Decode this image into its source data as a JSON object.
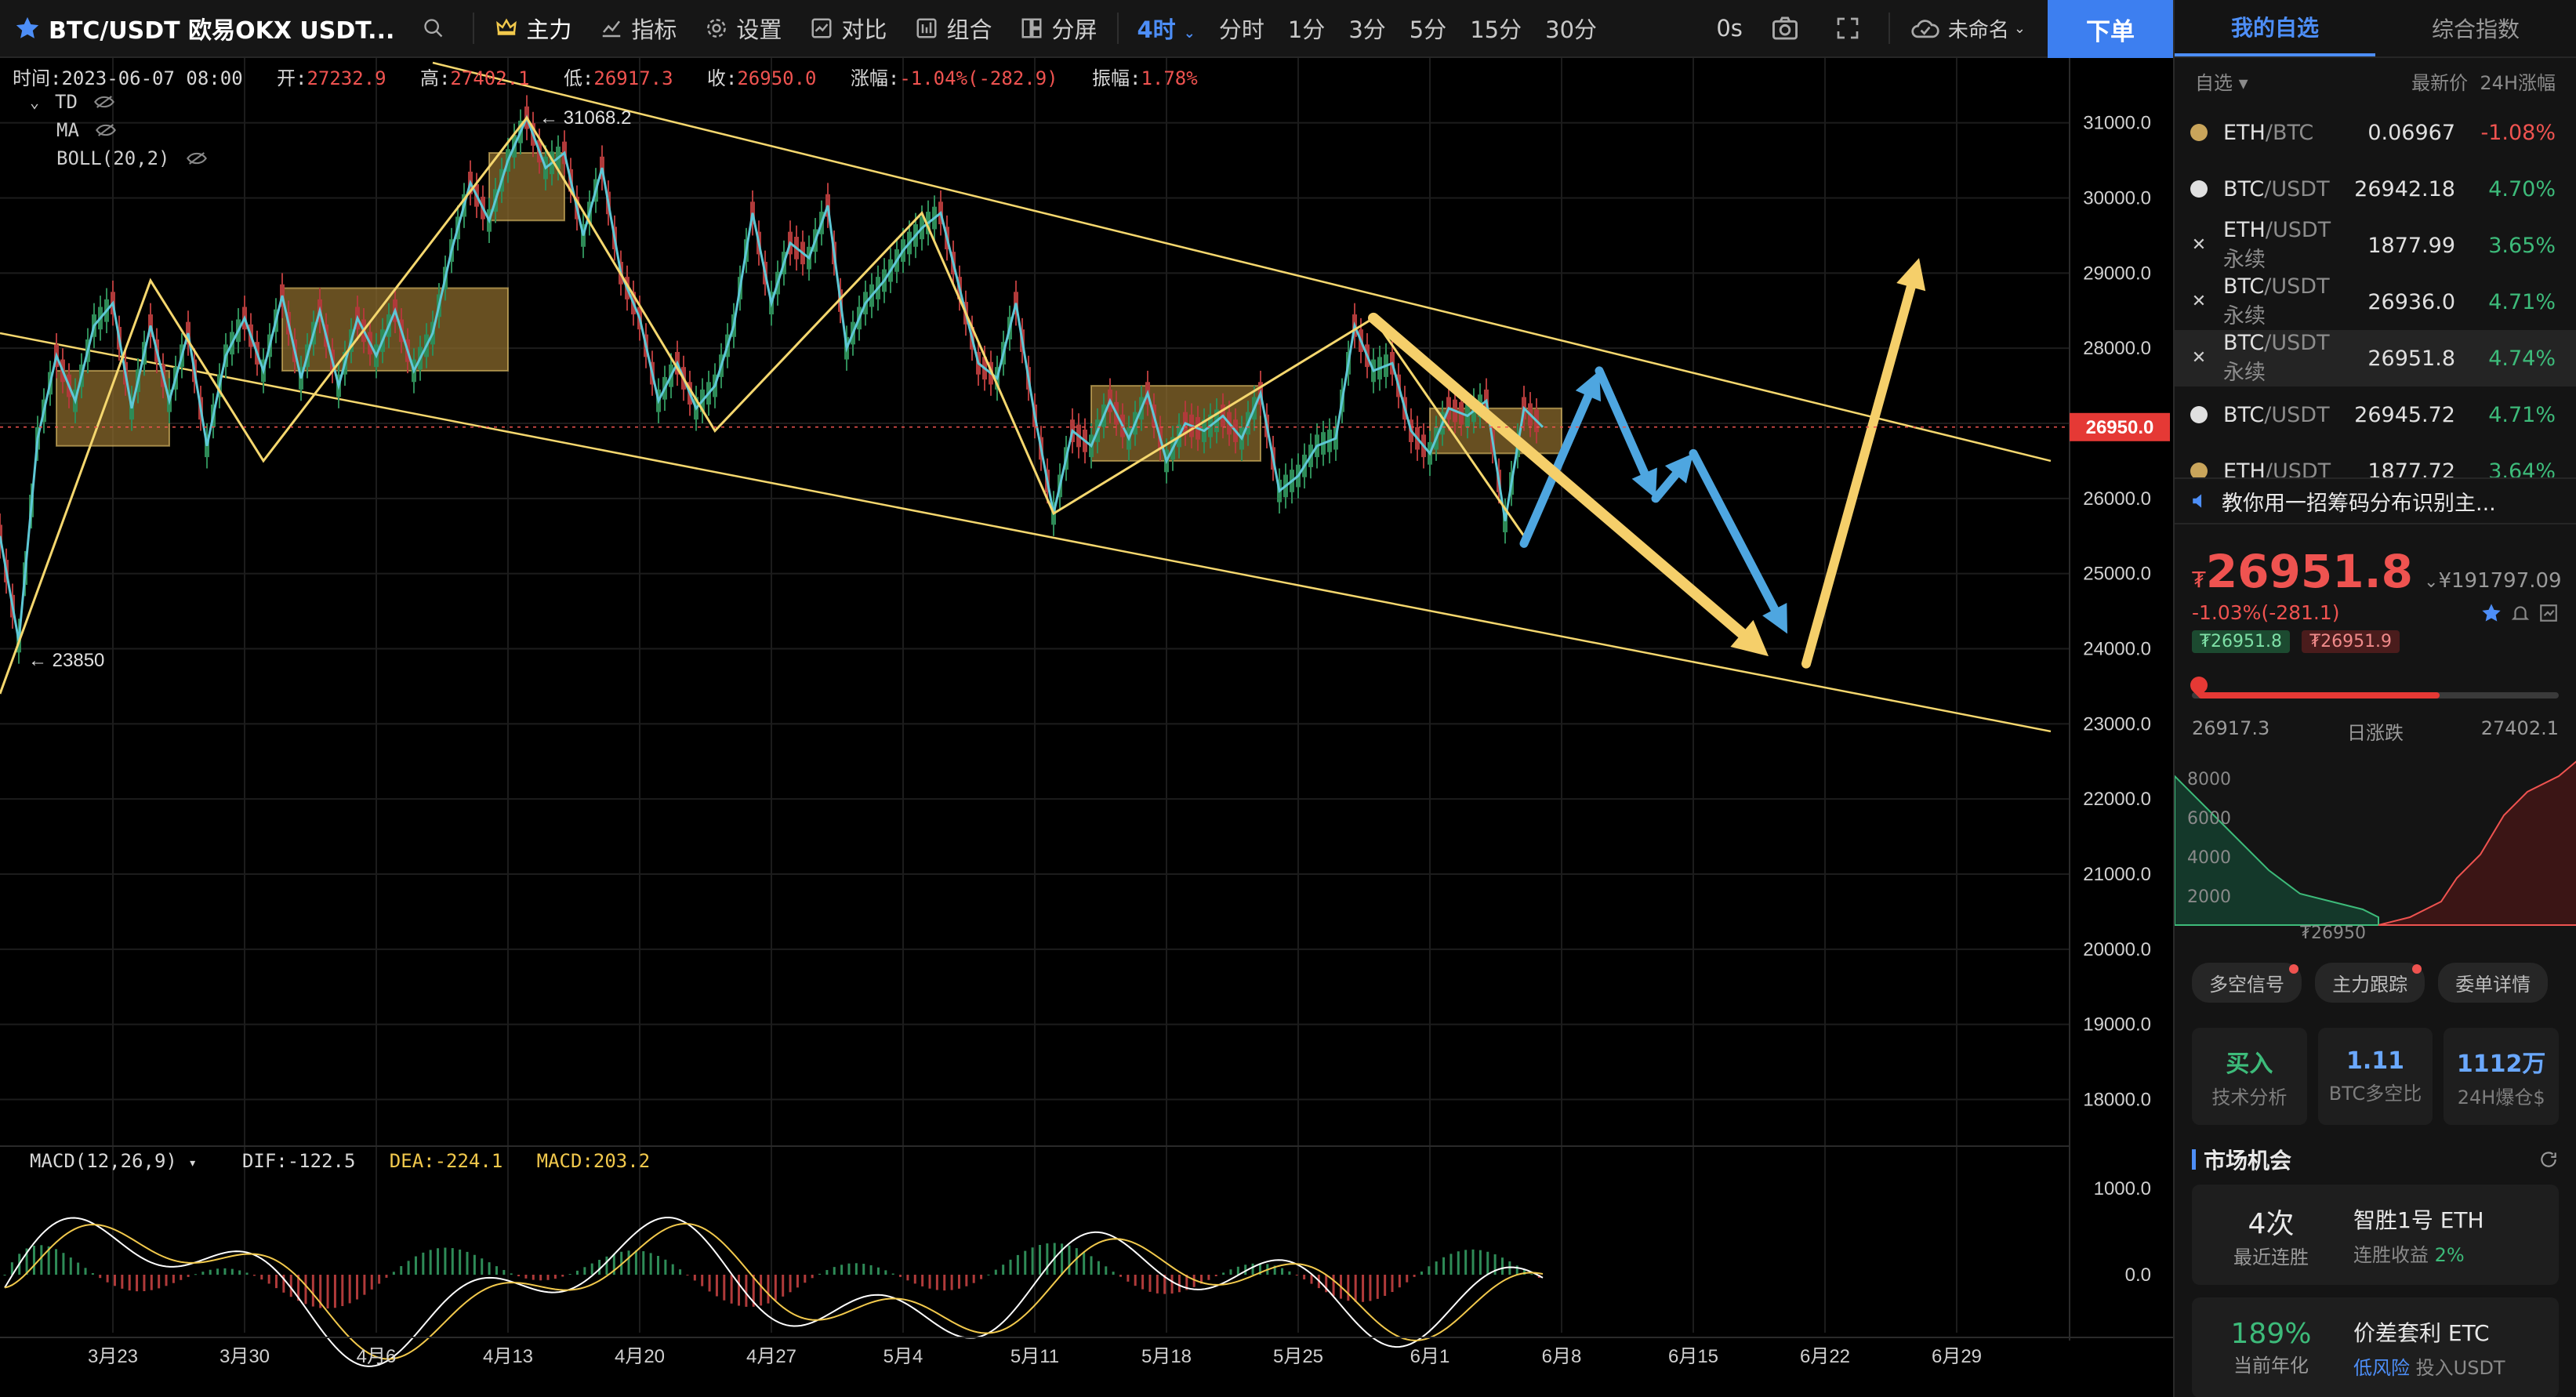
{
  "toolbar": {
    "symbol": "BTC/USDT 欧易OKX USDT...",
    "main": "主力",
    "indicator": "指标",
    "settings": "设置",
    "compare": "对比",
    "combo": "组合",
    "split": "分屏",
    "timeframes": [
      "4时",
      "分时",
      "1分",
      "3分",
      "5分",
      "15分",
      "30分"
    ],
    "active_timeframe": "4时",
    "countdown": "0s",
    "cloud": "未命名",
    "order_button": "下单"
  },
  "info": {
    "time_label": "时间:",
    "time": "2023-06-07 08:00",
    "open_label": "开:",
    "open": "27232.9",
    "high_label": "高:",
    "high": "27402.1",
    "low_label": "低:",
    "low": "26917.3",
    "close_label": "收:",
    "close": "26950.0",
    "change_label": "涨幅:",
    "change": "-1.04%(-282.9)",
    "amp_label": "振幅:",
    "amp": "1.78%"
  },
  "indicators": [
    "TD",
    "MA",
    "BOLL(20,2)"
  ],
  "macd": {
    "name": "MACD(12,26,9)",
    "dif_label": "DIF:",
    "dif": "-122.5",
    "dea_label": "DEA:",
    "dea": "-224.1",
    "macd_label": "MACD:",
    "macd": "203.2"
  },
  "chart_data": {
    "type": "line",
    "symbol": "BTC/USDT",
    "interval": "4h",
    "y_axis_ticks": [
      "31000.0",
      "30000.0",
      "29000.0",
      "28000.0",
      "27000.0",
      "26000.0",
      "25000.0",
      "24000.0",
      "23000.0",
      "22000.0",
      "21000.0",
      "20000.0",
      "19000.0",
      "18000.0"
    ],
    "y_range": [
      17400,
      31800
    ],
    "x_axis_ticks": [
      "3月23",
      "3月30",
      "4月6",
      "4月13",
      "4月20",
      "4月27",
      "5月4",
      "5月11",
      "5月18",
      "5月25",
      "6月1",
      "6月8",
      "6月15",
      "6月22",
      "6月29"
    ],
    "x_range": [
      "2023-03-17",
      "2023-07-05"
    ],
    "current_price_label": "26950.0",
    "current_price": 26950,
    "high_marker": "31068.2",
    "high_marker_value": 31068.2,
    "low_marker": "23850",
    "low_marker_value": 23850,
    "macd_ticks": [
      "1000.0",
      "0.0"
    ],
    "price_path_zigzag": [
      {
        "x": "2023-03-17",
        "y": 25500
      },
      {
        "x": "2023-03-18",
        "y": 24100
      },
      {
        "x": "2023-03-19",
        "y": 26800
      },
      {
        "x": "2023-03-20",
        "y": 27900
      },
      {
        "x": "2023-03-21",
        "y": 27300
      },
      {
        "x": "2023-03-22",
        "y": 28300
      },
      {
        "x": "2023-03-23",
        "y": 28600
      },
      {
        "x": "2023-03-24",
        "y": 27200
      },
      {
        "x": "2023-03-25",
        "y": 28300
      },
      {
        "x": "2023-03-26",
        "y": 27300
      },
      {
        "x": "2023-03-27",
        "y": 28200
      },
      {
        "x": "2023-03-28",
        "y": 26700
      },
      {
        "x": "2023-03-29",
        "y": 27900
      },
      {
        "x": "2023-03-30",
        "y": 28400
      },
      {
        "x": "2023-03-31",
        "y": 27700
      },
      {
        "x": "2023-04-01",
        "y": 28700
      },
      {
        "x": "2023-04-02",
        "y": 27600
      },
      {
        "x": "2023-04-03",
        "y": 28500
      },
      {
        "x": "2023-04-04",
        "y": 27500
      },
      {
        "x": "2023-04-05",
        "y": 28400
      },
      {
        "x": "2023-04-06",
        "y": 27900
      },
      {
        "x": "2023-04-07",
        "y": 28500
      },
      {
        "x": "2023-04-08",
        "y": 27700
      },
      {
        "x": "2023-04-09",
        "y": 28200
      },
      {
        "x": "2023-04-10",
        "y": 29300
      },
      {
        "x": "2023-04-11",
        "y": 30200
      },
      {
        "x": "2023-04-12",
        "y": 29700
      },
      {
        "x": "2023-04-13",
        "y": 30500
      },
      {
        "x": "2023-04-14",
        "y": 31068
      },
      {
        "x": "2023-04-15",
        "y": 30400
      },
      {
        "x": "2023-04-16",
        "y": 30600
      },
      {
        "x": "2023-04-17",
        "y": 29500
      },
      {
        "x": "2023-04-18",
        "y": 30400
      },
      {
        "x": "2023-04-19",
        "y": 29000
      },
      {
        "x": "2023-04-20",
        "y": 28400
      },
      {
        "x": "2023-04-21",
        "y": 27300
      },
      {
        "x": "2023-04-22",
        "y": 27800
      },
      {
        "x": "2023-04-23",
        "y": 27200
      },
      {
        "x": "2023-04-24",
        "y": 27500
      },
      {
        "x": "2023-04-25",
        "y": 28300
      },
      {
        "x": "2023-04-26",
        "y": 29800
      },
      {
        "x": "2023-04-27",
        "y": 28600
      },
      {
        "x": "2023-04-28",
        "y": 29400
      },
      {
        "x": "2023-04-29",
        "y": 29200
      },
      {
        "x": "2023-04-30",
        "y": 29900
      },
      {
        "x": "2023-05-01",
        "y": 28000
      },
      {
        "x": "2023-05-02",
        "y": 28600
      },
      {
        "x": "2023-05-03",
        "y": 28900
      },
      {
        "x": "2023-05-04",
        "y": 29300
      },
      {
        "x": "2023-05-05",
        "y": 29600
      },
      {
        "x": "2023-05-06",
        "y": 29800
      },
      {
        "x": "2023-05-07",
        "y": 28800
      },
      {
        "x": "2023-05-08",
        "y": 27800
      },
      {
        "x": "2023-05-09",
        "y": 27600
      },
      {
        "x": "2023-05-10",
        "y": 28600
      },
      {
        "x": "2023-05-11",
        "y": 27100
      },
      {
        "x": "2023-05-12",
        "y": 25800
      },
      {
        "x": "2023-05-13",
        "y": 26900
      },
      {
        "x": "2023-05-14",
        "y": 26700
      },
      {
        "x": "2023-05-15",
        "y": 27300
      },
      {
        "x": "2023-05-16",
        "y": 26800
      },
      {
        "x": "2023-05-17",
        "y": 27400
      },
      {
        "x": "2023-05-18",
        "y": 26500
      },
      {
        "x": "2023-05-19",
        "y": 27000
      },
      {
        "x": "2023-05-20",
        "y": 26900
      },
      {
        "x": "2023-05-21",
        "y": 27100
      },
      {
        "x": "2023-05-22",
        "y": 26800
      },
      {
        "x": "2023-05-23",
        "y": 27400
      },
      {
        "x": "2023-05-24",
        "y": 26100
      },
      {
        "x": "2023-05-25",
        "y": 26300
      },
      {
        "x": "2023-05-26",
        "y": 26700
      },
      {
        "x": "2023-05-27",
        "y": 26800
      },
      {
        "x": "2023-05-28",
        "y": 28300
      },
      {
        "x": "2023-05-29",
        "y": 27700
      },
      {
        "x": "2023-05-30",
        "y": 27800
      },
      {
        "x": "2023-05-31",
        "y": 26900
      },
      {
        "x": "2023-06-01",
        "y": 26600
      },
      {
        "x": "2023-06-02",
        "y": 27200
      },
      {
        "x": "2023-06-03",
        "y": 27100
      },
      {
        "x": "2023-06-04",
        "y": 27300
      },
      {
        "x": "2023-06-05",
        "y": 25700
      },
      {
        "x": "2023-06-06",
        "y": 27200
      },
      {
        "x": "2023-06-07",
        "y": 26950
      }
    ],
    "trend_channel": {
      "upper": [
        {
          "x": "2023-04-09",
          "y": 31800
        },
        {
          "x": "2023-07-04",
          "y": 26500
        }
      ],
      "lower": [
        {
          "x": "2023-03-17",
          "y": 28200
        },
        {
          "x": "2023-07-04",
          "y": 22900
        }
      ]
    },
    "yellow_wave": [
      {
        "x": "2023-03-17",
        "y": 23400
      },
      {
        "x": "2023-03-25",
        "y": 28900
      },
      {
        "x": "2023-03-31",
        "y": 26500
      },
      {
        "x": "2023-04-14",
        "y": 31068
      },
      {
        "x": "2023-04-24",
        "y": 26900
      },
      {
        "x": "2023-05-05",
        "y": 29800
      },
      {
        "x": "2023-05-12",
        "y": 25800
      },
      {
        "x": "2023-05-29",
        "y": 28400
      },
      {
        "x": "2023-06-06",
        "y": 25500
      }
    ],
    "projection_yellow_down": [
      {
        "x": "2023-05-29",
        "y": 28400
      },
      {
        "x": "2023-06-19",
        "y": 23900
      }
    ],
    "projection_yellow_up": [
      {
        "x": "2023-06-21",
        "y": 23800
      },
      {
        "x": "2023-06-27",
        "y": 29200
      }
    ],
    "projection_blue": [
      {
        "x": "2023-06-06",
        "y": 25400
      },
      {
        "x": "2023-06-10",
        "y": 27700
      },
      {
        "x": "2023-06-13",
        "y": 26000
      },
      {
        "x": "2023-06-15",
        "y": 26600
      },
      {
        "x": "2023-06-20",
        "y": 24200
      }
    ],
    "consolidation_boxes": [
      {
        "x0": "2023-03-20",
        "x1": "2023-03-26",
        "y0": 26700,
        "y1": 27700
      },
      {
        "x0": "2023-04-01",
        "x1": "2023-04-13",
        "y0": 27700,
        "y1": 28800
      },
      {
        "x0": "2023-04-12",
        "x1": "2023-04-16",
        "y0": 29700,
        "y1": 30600
      },
      {
        "x0": "2023-05-14",
        "x1": "2023-05-23",
        "y0": 26500,
        "y1": 27500
      },
      {
        "x0": "2023-06-01",
        "x1": "2023-06-08",
        "y0": 26600,
        "y1": 27200
      }
    ]
  },
  "panel": {
    "tabs": [
      "我的自选",
      "综合指数"
    ],
    "filter": "自选",
    "col_price": "最新价",
    "col_change": "24H涨幅",
    "watchlist": [
      {
        "base": "ETH",
        "quote": "/BTC",
        "price": "0.06967",
        "change": "-1.08%",
        "dir": "down"
      },
      {
        "base": "BTC",
        "quote": "/USDT",
        "price": "26942.18",
        "change": "4.70%",
        "dir": "up"
      },
      {
        "base": "ETH",
        "quote": "/USDT永续",
        "price": "1877.99",
        "change": "3.65%",
        "dir": "up"
      },
      {
        "base": "BTC",
        "quote": "/USDT永续",
        "price": "26936.0",
        "change": "4.71%",
        "dir": "up"
      },
      {
        "base": "BTC",
        "quote": "/USDT永续",
        "price": "26951.8",
        "change": "4.74%",
        "dir": "up"
      },
      {
        "base": "BTC",
        "quote": "/USDT",
        "price": "26945.72",
        "change": "4.71%",
        "dir": "up"
      },
      {
        "base": "ETH",
        "quote": "/USDT",
        "price": "1877.72",
        "change": "3.64%",
        "dir": "up"
      }
    ],
    "news": "教你用一招筹码分布识别主...",
    "price": "26951.8",
    "currency": "₮",
    "cny_price": "¥191797.09",
    "change": "-1.03%(-281.1)",
    "tag_bid": "₮26951.8",
    "tag_ask": "₮26951.9",
    "range_low": "26917.3",
    "range_label": "日涨跌",
    "range_high": "27402.1",
    "depth_ticks": [
      "8000",
      "6000",
      "4000",
      "2000"
    ],
    "depth_price": "₮26950",
    "pills": [
      "多空信号",
      "主力跟踪",
      "委单详情"
    ],
    "cards": [
      {
        "value": "买入",
        "label": "技术分析"
      },
      {
        "value": "1.11",
        "label": "BTC多空比"
      },
      {
        "value": "1112万",
        "label": "24H爆仓$"
      }
    ],
    "market_title": "市场机会",
    "opps": [
      {
        "num": "4次",
        "sub": "最近连胜",
        "name": "智胜1号 ETH",
        "desc": "连胜收益",
        "pct": "2%"
      },
      {
        "num": "189%",
        "sub": "当前年化",
        "name": "价差套利 ETC",
        "desc": "低风险",
        "desc2": "投入USDT"
      }
    ]
  },
  "colors": {
    "up": "#3dbb7a",
    "down": "#ef5350",
    "accent": "#3d7ff0",
    "zigzag": "#5ec8d6",
    "wave": "#f5d76e",
    "projection_blue": "#4ea6e0",
    "projection_yellow": "#f5cf6a",
    "box": "#8a6a2c"
  },
  "icons": [
    "star-icon",
    "search-icon",
    "crown-icon",
    "chart-icon",
    "gear-icon",
    "compare-icon",
    "combo-icon",
    "split-icon",
    "camera-icon",
    "fullscreen-icon",
    "cloud-icon",
    "eye-hidden-icon",
    "speaker-icon",
    "bell-icon",
    "refresh-icon"
  ]
}
